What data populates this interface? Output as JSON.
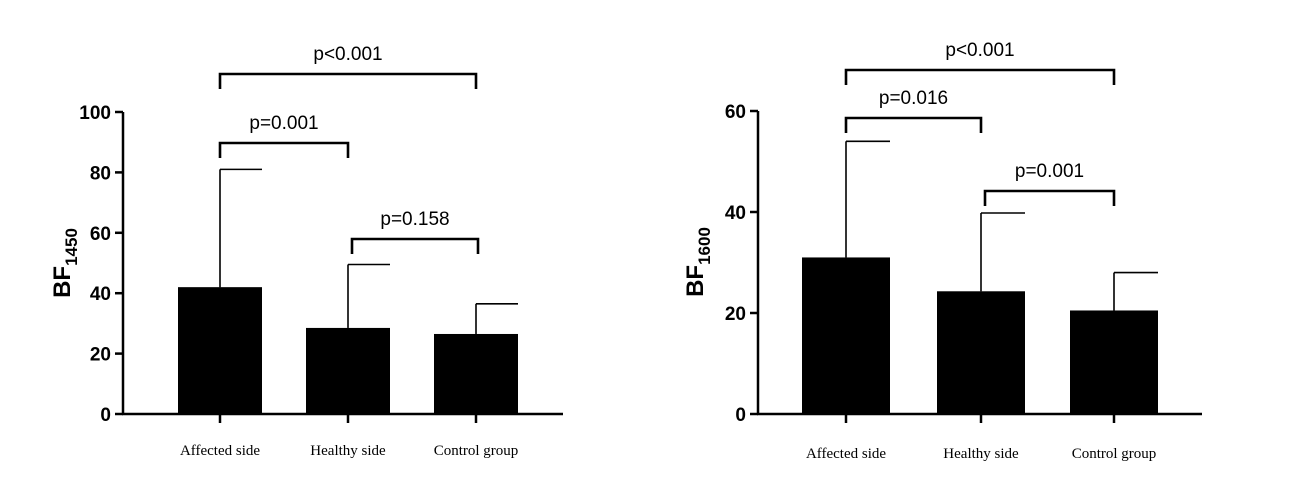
{
  "chart_data": [
    {
      "type": "bar",
      "ylabel_main": "BF",
      "ylabel_sub": "1450",
      "categories": [
        "Affected side",
        "Healthy side",
        "Control group"
      ],
      "values": [
        42,
        28.5,
        26.5
      ],
      "error_upper": [
        81,
        49.5,
        36.5
      ],
      "ylim": [
        0,
        100
      ],
      "yticks": [
        0,
        20,
        40,
        60,
        80,
        100
      ],
      "comparisons": [
        {
          "from": 0,
          "to": 2,
          "label": "p<0.001",
          "level": 0
        },
        {
          "from": 0,
          "to": 1,
          "label": "p=0.001",
          "level": 1
        },
        {
          "from": 1,
          "to": 2,
          "label": "p=0.158",
          "level": 2
        }
      ]
    },
    {
      "type": "bar",
      "ylabel_main": "BF",
      "ylabel_sub": "1600",
      "categories": [
        "Affected side",
        "Healthy side",
        "Control group"
      ],
      "values": [
        31,
        24.3,
        20.5
      ],
      "error_upper": [
        54,
        39.8,
        28
      ],
      "ylim": [
        0,
        60
      ],
      "yticks": [
        0,
        20,
        40,
        60
      ],
      "comparisons": [
        {
          "from": 0,
          "to": 2,
          "label": "p<0.001",
          "level": 0
        },
        {
          "from": 0,
          "to": 1,
          "label": "p=0.016",
          "level": 1
        },
        {
          "from": 1,
          "to": 2,
          "label": "p=0.001",
          "level": 2
        }
      ]
    }
  ]
}
